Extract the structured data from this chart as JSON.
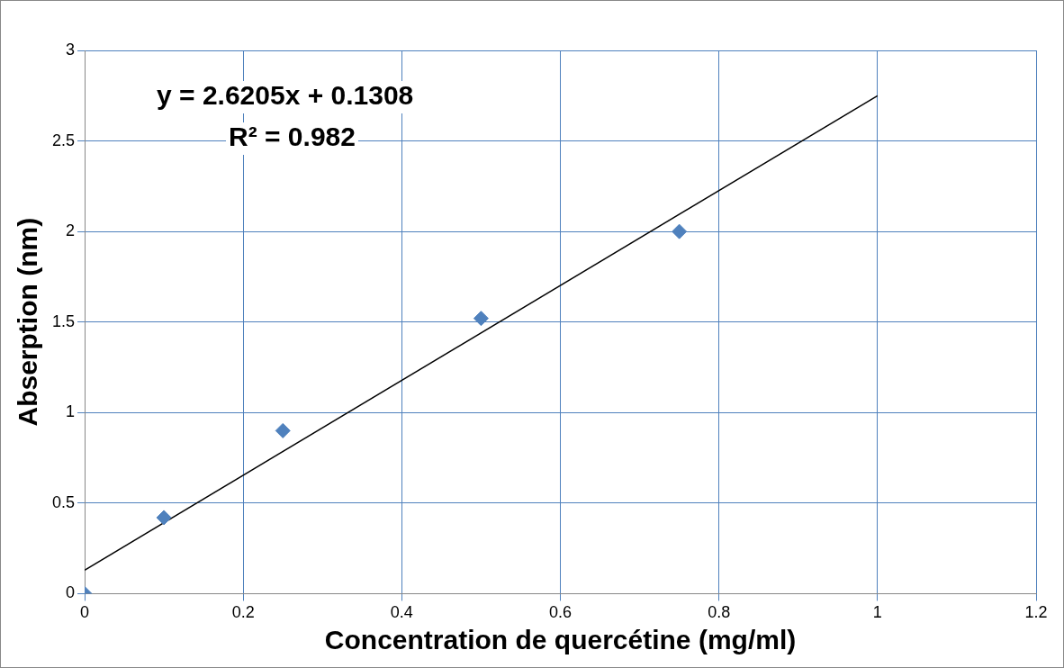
{
  "chart_data": {
    "type": "scatter",
    "xlabel": "Concentration de quercétine (mg/ml)",
    "ylabel": "Abserption (nm)",
    "annotations": [
      "y = 2.6205x + 0.1308",
      "R² = 0.982"
    ],
    "series": [
      {
        "type": "scatter",
        "color": "#4f81bd",
        "x": [
          0,
          0.1,
          0.25,
          0.5,
          0.75
        ],
        "values": [
          0,
          0.42,
          0.9,
          1.52,
          2.0
        ],
        "marker": "diamond"
      },
      {
        "type": "line",
        "color": "#000000",
        "x": [
          0,
          1
        ],
        "values": [
          0.13,
          2.75
        ],
        "marker": "none"
      }
    ],
    "xlim": [
      0,
      1.2
    ],
    "xticks": [
      0,
      0.2,
      0.4,
      0.6,
      0.8,
      1,
      1.2
    ],
    "ylim": [
      0,
      3
    ],
    "yticks": [
      0,
      0.5,
      1,
      1.5,
      2,
      2.5,
      3
    ],
    "grid": true,
    "legend": false
  }
}
